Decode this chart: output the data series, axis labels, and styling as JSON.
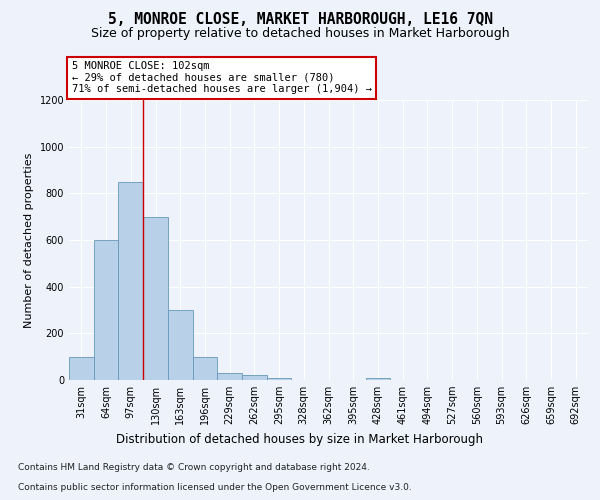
{
  "title": "5, MONROE CLOSE, MARKET HARBOROUGH, LE16 7QN",
  "subtitle": "Size of property relative to detached houses in Market Harborough",
  "xlabel": "Distribution of detached houses by size in Market Harborough",
  "ylabel": "Number of detached properties",
  "footer_line1": "Contains HM Land Registry data © Crown copyright and database right 2024.",
  "footer_line2": "Contains public sector information licensed under the Open Government Licence v3.0.",
  "categories": [
    "31sqm",
    "64sqm",
    "97sqm",
    "130sqm",
    "163sqm",
    "196sqm",
    "229sqm",
    "262sqm",
    "295sqm",
    "328sqm",
    "362sqm",
    "395sqm",
    "428sqm",
    "461sqm",
    "494sqm",
    "527sqm",
    "560sqm",
    "593sqm",
    "626sqm",
    "659sqm",
    "692sqm"
  ],
  "values": [
    100,
    600,
    850,
    700,
    300,
    100,
    30,
    20,
    10,
    0,
    0,
    0,
    10,
    0,
    0,
    0,
    0,
    0,
    0,
    0,
    0
  ],
  "bar_color": "#b8d0e8",
  "bar_edge_color": "#6699bb",
  "vline_x_index": 2,
  "vline_color": "#cc0000",
  "annotation_text": "5 MONROE CLOSE: 102sqm\n← 29% of detached houses are smaller (780)\n71% of semi-detached houses are larger (1,904) →",
  "annotation_box_color": "#ffffff",
  "annotation_box_edge_color": "#cc0000",
  "annotation_fontsize": 7.5,
  "ylim": [
    0,
    1200
  ],
  "yticks": [
    0,
    200,
    400,
    600,
    800,
    1000,
    1200
  ],
  "background_color": "#eef2fb",
  "plot_bg_color": "#eef2fb",
  "grid_color": "#ffffff",
  "title_fontsize": 10.5,
  "subtitle_fontsize": 9,
  "xlabel_fontsize": 8.5,
  "ylabel_fontsize": 8,
  "tick_fontsize": 7,
  "footer_fontsize": 6.5
}
